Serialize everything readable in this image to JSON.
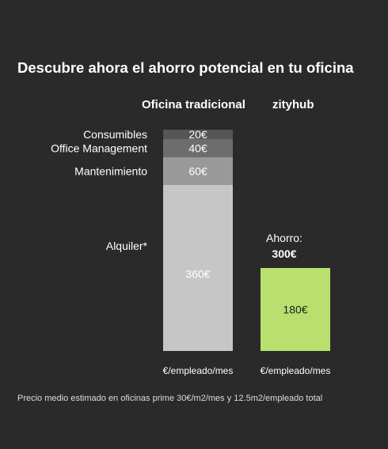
{
  "title": "Descubre ahora el ahorro potencial en tu oficina",
  "colors": {
    "background": "#2a2a2a",
    "accent": "#b9e06f"
  },
  "chart_data": {
    "type": "bar",
    "stacked": true,
    "categories": [
      "Oficina tradicional",
      "zityhub"
    ],
    "ylim": [
      0,
      480
    ],
    "series": [
      {
        "name": "Alquiler*",
        "values": [
          360,
          null
        ],
        "color": "#c6c6c6",
        "value_label": "360€"
      },
      {
        "name": "Mantenimiento",
        "values": [
          60,
          null
        ],
        "color": "#999999",
        "value_label": "60€"
      },
      {
        "name": "Office Management",
        "values": [
          40,
          null
        ],
        "color": "#6d6d6d",
        "value_label": "40€"
      },
      {
        "name": "Consumibles",
        "values": [
          20,
          null
        ],
        "color": "#555555",
        "value_label": "20€"
      },
      {
        "name": "",
        "values": [
          null,
          180
        ],
        "color": "#b9e06f",
        "value_label": "180€"
      }
    ],
    "unit_labels": [
      "€/empleado/mes",
      "€/empleado/mes"
    ],
    "annotation": {
      "label": "Ahorro:",
      "value": "300€"
    }
  },
  "footnote": "Precio medio estimado en oficinas prime 30€/m2/mes y 12.5m2/empleado total"
}
